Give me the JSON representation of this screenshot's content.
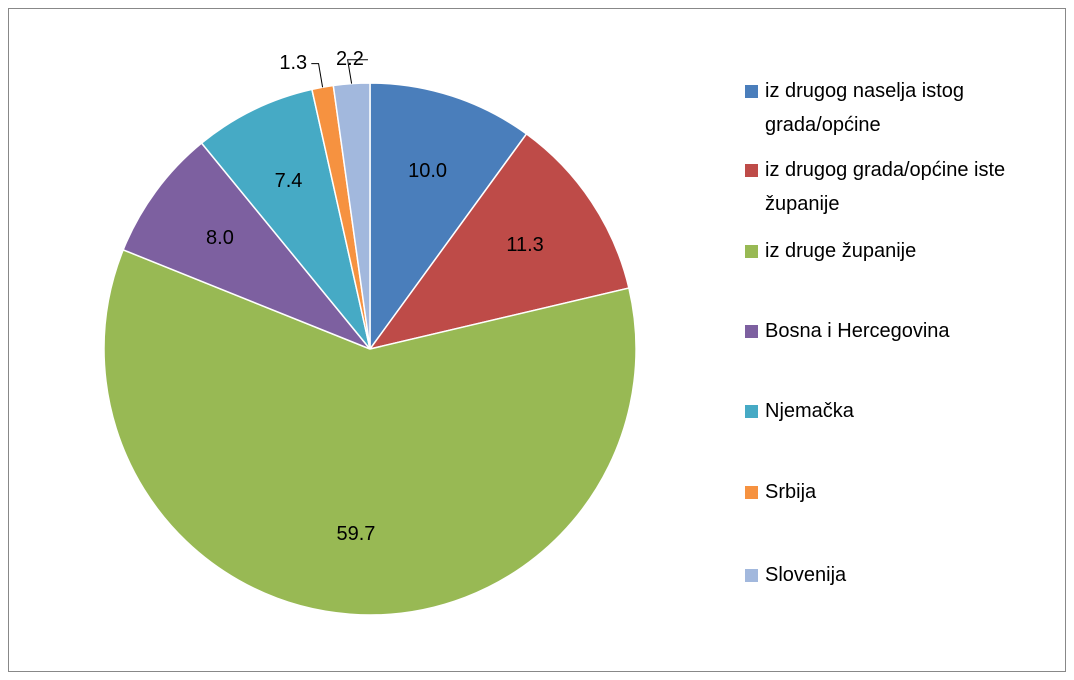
{
  "chart_data": {
    "type": "pie",
    "categories": [
      "iz drugog naselja istog grada/općine",
      "iz drugog grada/općine iste županije",
      "iz druge županije",
      "Bosna i Hercegovina",
      "Njemačka",
      "Srbija",
      "Slovenija"
    ],
    "values": [
      10.0,
      11.3,
      59.7,
      8.0,
      7.4,
      1.3,
      2.2
    ],
    "value_labels": [
      "10.0",
      "11.3",
      "59.7",
      "8.0",
      "7.4",
      "1.3",
      "2.2"
    ],
    "colors": [
      "#4a7ebb",
      "#be4b48",
      "#98b954",
      "#7d60a0",
      "#46aac5",
      "#f69240",
      "#a2b8dd"
    ],
    "legend": "right"
  }
}
